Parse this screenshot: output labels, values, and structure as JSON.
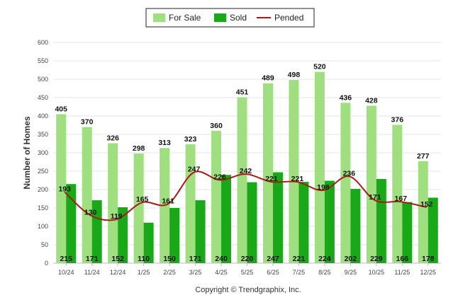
{
  "chart_data": {
    "type": "bar",
    "categories": [
      "10/24",
      "11/24",
      "12/24",
      "1/25",
      "2/25",
      "3/25",
      "4/25",
      "5/25",
      "6/25",
      "7/25",
      "8/25",
      "9/25",
      "10/25",
      "11/25",
      "12/25"
    ],
    "series": [
      {
        "name": "For Sale",
        "type": "bar",
        "color": "#9fdf7f",
        "values": [
          405,
          370,
          326,
          298,
          313,
          323,
          360,
          451,
          489,
          498,
          520,
          436,
          428,
          376,
          277
        ]
      },
      {
        "name": "Sold",
        "type": "bar",
        "color": "#18a818",
        "values": [
          215,
          171,
          152,
          110,
          150,
          171,
          240,
          220,
          247,
          221,
          224,
          202,
          229,
          166,
          178
        ]
      },
      {
        "name": "Pended",
        "type": "line",
        "color": "#b01818",
        "values": [
          193,
          130,
          119,
          165,
          161,
          247,
          226,
          242,
          221,
          221,
          198,
          236,
          171,
          167,
          152
        ]
      }
    ],
    "ylabel": "Number of Homes",
    "xlabel": "",
    "ylim": [
      0,
      600
    ],
    "yticks": [
      0,
      50,
      100,
      150,
      200,
      250,
      300,
      350,
      400,
      450,
      500,
      550,
      600
    ],
    "grid": true,
    "legend": "top-center"
  },
  "legend": {
    "for_sale": "For Sale",
    "sold": "Sold",
    "pended": "Pended"
  },
  "footer": {
    "copyright": "Copyright © Trendgraphix, Inc."
  }
}
